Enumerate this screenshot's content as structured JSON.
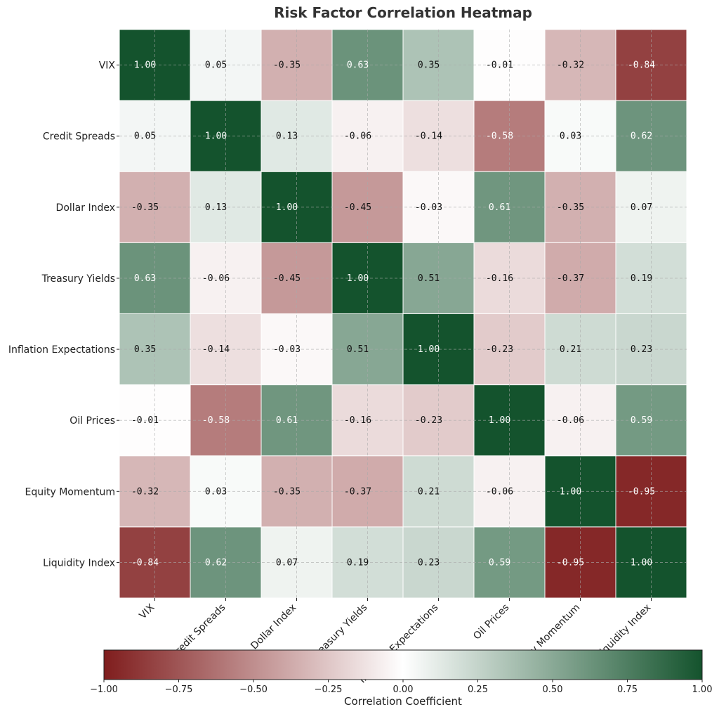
{
  "chart_data": {
    "type": "heatmap",
    "title": "Risk Factor Correlation Heatmap",
    "x_categories": [
      "VIX",
      "Credit Spreads",
      "Dollar Index",
      "Treasury Yields",
      "Inflation Expectations",
      "Oil Prices",
      "Equity Momentum",
      "Liquidity Index"
    ],
    "y_categories": [
      "VIX",
      "Credit Spreads",
      "Dollar Index",
      "Treasury Yields",
      "Inflation Expectations",
      "Oil Prices",
      "Equity Momentum",
      "Liquidity Index"
    ],
    "values": [
      [
        1.0,
        0.05,
        -0.35,
        0.63,
        0.35,
        -0.01,
        -0.32,
        -0.84
      ],
      [
        0.05,
        1.0,
        0.13,
        -0.06,
        -0.14,
        -0.58,
        0.03,
        0.62
      ],
      [
        -0.35,
        0.13,
        1.0,
        -0.45,
        -0.03,
        0.61,
        -0.35,
        0.07
      ],
      [
        0.63,
        -0.06,
        -0.45,
        1.0,
        0.51,
        -0.16,
        -0.37,
        0.19
      ],
      [
        0.35,
        -0.14,
        -0.03,
        0.51,
        1.0,
        -0.23,
        0.21,
        0.23
      ],
      [
        -0.01,
        -0.58,
        0.61,
        -0.16,
        -0.23,
        1.0,
        -0.06,
        0.59
      ],
      [
        -0.32,
        0.03,
        -0.35,
        -0.37,
        0.21,
        -0.06,
        1.0,
        -0.95
      ],
      [
        -0.84,
        0.62,
        0.07,
        0.19,
        0.23,
        0.59,
        -0.95,
        1.0
      ]
    ],
    "value_format": "2 decimals",
    "vmin": -1.0,
    "vmax": 1.0,
    "colormap": {
      "low": "#7f1d1d",
      "mid": "#ffffff",
      "high": "#14532d"
    },
    "grid": true,
    "colorbar": {
      "label": "Correlation Coefficient",
      "orientation": "horizontal",
      "ticks": [
        -1.0,
        -0.75,
        -0.5,
        -0.25,
        0.0,
        0.25,
        0.5,
        0.75,
        1.0
      ],
      "tick_labels": [
        "−1.00",
        "−0.75",
        "−0.50",
        "−0.25",
        "0.00",
        "0.25",
        "0.50",
        "0.75",
        "1.00"
      ]
    }
  }
}
